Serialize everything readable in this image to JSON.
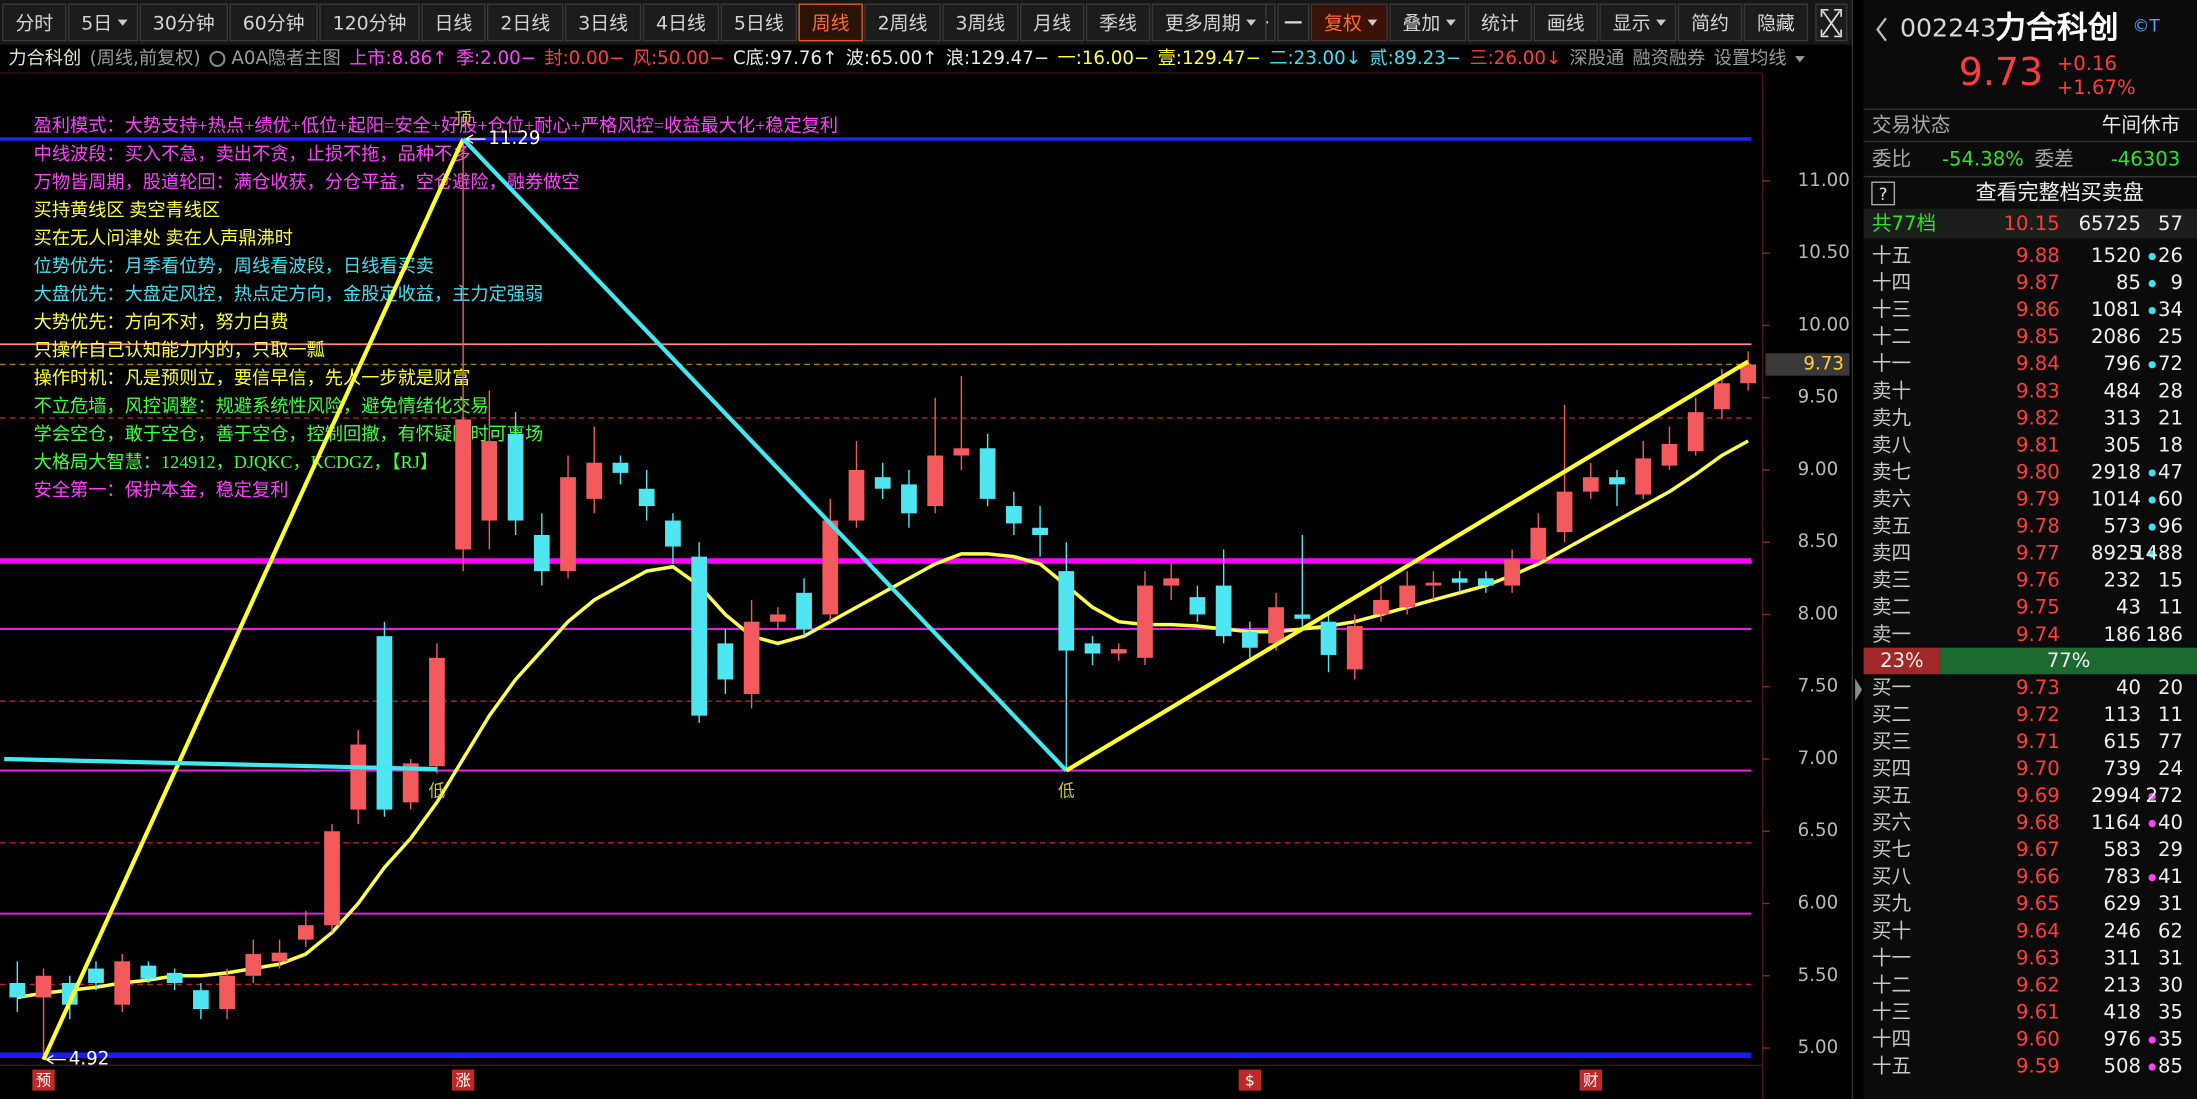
{
  "toolbar": {
    "periods": [
      {
        "text": "分时"
      },
      {
        "text": "5日",
        "dropdown": true
      },
      {
        "text": "30分钟"
      },
      {
        "text": "60分钟"
      },
      {
        "text": "120分钟"
      },
      {
        "text": "日线"
      },
      {
        "text": "2日线"
      },
      {
        "text": "3日线"
      },
      {
        "text": "4日线"
      },
      {
        "text": "5日线"
      },
      {
        "text": "周线"
      },
      {
        "text": "2周线"
      },
      {
        "text": "3周线"
      },
      {
        "text": "月线"
      },
      {
        "text": "季线"
      },
      {
        "text": "更多周期",
        "dropdown": true
      }
    ],
    "active_index": 10,
    "tools": [
      {
        "text": "复权",
        "dropdown": true,
        "highlight": true
      },
      {
        "text": "叠加",
        "dropdown": true
      },
      {
        "text": "统计"
      },
      {
        "text": "画线"
      },
      {
        "text": "显示",
        "dropdown": true
      },
      {
        "text": "简约"
      },
      {
        "text": "隐藏"
      }
    ]
  },
  "indicator_bar": {
    "items": [
      {
        "text": "力合科创",
        "color": "#e8e8c8"
      },
      {
        "text": "(周线,前复权)",
        "color": "#9a9a9a"
      },
      {
        "text": "A0A隐者主图",
        "color": "#9a9a9a"
      },
      {
        "text": "上市:8.86↑",
        "color": "#ff40ff"
      },
      {
        "text": "季:2.00−",
        "color": "#ff40ff"
      },
      {
        "text": "封:0.00−",
        "color": "#ff3c3c"
      },
      {
        "text": "风:50.00−",
        "color": "#ff3c3c"
      },
      {
        "text": "C底:97.76↑",
        "color": "#e8e8e8"
      },
      {
        "text": "波:65.00↑",
        "color": "#e8e8e8"
      },
      {
        "text": "浪:129.47−",
        "color": "#e8e8e8"
      },
      {
        "text": "一:16.00−",
        "color": "#ffff40"
      },
      {
        "text": "壹:129.47−",
        "color": "#ffff40"
      },
      {
        "text": "二:23.00↓",
        "color": "#40e0f0"
      },
      {
        "text": "贰:89.23−",
        "color": "#40e0f0"
      },
      {
        "text": "三:26.00↓",
        "color": "#ff3c3c"
      },
      {
        "text": "深股通",
        "color": "#9a9a9a"
      },
      {
        "text": "融资融券",
        "color": "#9a9a9a"
      },
      {
        "text": "设置均线",
        "color": "#9a9a9a",
        "dropdown": true
      }
    ]
  },
  "notes": [
    {
      "text": "盈利模式：大势支持+热点+绩优+低位+起阳=安全+好股+仓位+耐心+严格风控=收益最大化+稳定复利",
      "color": "#ff40ff"
    },
    {
      "text": "中线波段：买入不急，卖出不贪，止损不拖，品种不多",
      "color": "#ff40ff"
    },
    {
      "text": "万物皆周期，股道轮回：满仓收获，分仓平益，空仓避险，融券做空",
      "color": "#ff40ff"
    },
    {
      "text": "买持黄线区    卖空青线区",
      "color": "#ffff40"
    },
    {
      "text": "买在无人问津处 卖在人声鼎沸时",
      "color": "#ffff40"
    },
    {
      "text": "位势优先：月季看位势，周线看波段，日线看买卖",
      "color": "#40e0f0"
    },
    {
      "text": "大盘优先：大盘定风控，热点定方向，金股定收益，主力定强弱",
      "color": "#40e0f0"
    },
    {
      "text": "大势优先：方向不对，努力白费",
      "color": "#ffff40"
    },
    {
      "text": "只操作自己认知能力内的，只取一瓢",
      "color": "#ffff40"
    },
    {
      "text": "操作时机：凡是预则立，要信早信，先人一步就是财富",
      "color": "#ffff40"
    },
    {
      "text": "不立危墙，风控调整：规避系统性风险，避免情绪化交易",
      "color": "#40ff40"
    },
    {
      "text": "学会空仓，敢于空仓，善于空仓，控制回撤，有怀疑随时可离场",
      "color": "#40ff40"
    },
    {
      "text": "大格局大智慧：124912，DJQKC，KCDGZ，【RJ】",
      "color": "#40ff40"
    },
    {
      "text": "安全第一：保护本金，稳定复利",
      "color": "#ff40ff"
    }
  ],
  "chart_data": {
    "type": "candlestick",
    "up_color": "#f25a5e",
    "down_color": "#4fe6f2",
    "open": [
      5.45,
      5.35,
      5.45,
      5.55,
      5.3,
      5.57,
      5.52,
      5.4,
      5.27,
      5.5,
      5.6,
      5.75,
      5.85,
      6.65,
      7.85,
      6.7,
      6.95,
      8.45,
      8.65,
      9.25,
      8.55,
      8.3,
      8.8,
      9.05,
      8.87,
      8.65,
      8.4,
      7.8,
      7.45,
      7.95,
      8.15,
      8.0,
      8.65,
      8.95,
      8.9,
      8.75,
      9.1,
      9.15,
      8.75,
      8.6,
      8.3,
      7.8,
      7.73,
      7.7,
      8.2,
      8.12,
      8.2,
      7.88,
      7.8,
      8.0,
      7.95,
      7.62,
      8.0,
      8.05,
      8.2,
      8.25,
      8.25,
      8.2,
      8.38,
      8.57,
      8.85,
      8.95,
      8.83,
      9.03,
      9.13,
      9.42,
      9.6
    ],
    "high": [
      5.6,
      5.55,
      5.5,
      5.6,
      5.65,
      5.6,
      5.55,
      5.45,
      5.55,
      5.75,
      5.75,
      5.95,
      6.55,
      7.2,
      7.95,
      7.0,
      7.8,
      11.29,
      9.55,
      9.4,
      8.7,
      9.1,
      9.3,
      9.1,
      9.0,
      8.7,
      8.5,
      7.9,
      8.1,
      8.05,
      8.25,
      8.8,
      9.2,
      9.05,
      9.0,
      9.5,
      9.65,
      9.25,
      8.85,
      8.75,
      8.5,
      7.85,
      7.8,
      8.3,
      8.35,
      8.2,
      8.45,
      7.95,
      8.15,
      8.55,
      8.0,
      8.0,
      8.2,
      8.3,
      8.3,
      8.3,
      8.3,
      8.45,
      8.7,
      9.45,
      9.05,
      9.0,
      9.2,
      9.3,
      9.5,
      9.7,
      9.82
    ],
    "low": [
      5.25,
      4.92,
      5.2,
      5.4,
      5.25,
      5.45,
      5.4,
      5.2,
      5.2,
      5.45,
      5.55,
      5.7,
      5.8,
      6.55,
      6.6,
      6.65,
      6.9,
      8.3,
      8.45,
      8.55,
      8.2,
      8.25,
      8.7,
      8.9,
      8.65,
      8.35,
      7.25,
      7.45,
      7.35,
      7.9,
      7.85,
      7.95,
      8.6,
      8.8,
      8.6,
      8.7,
      9.0,
      8.75,
      8.55,
      8.4,
      6.92,
      7.65,
      7.68,
      7.65,
      8.1,
      7.95,
      7.8,
      7.7,
      7.75,
      7.9,
      7.6,
      7.55,
      7.95,
      8.0,
      8.1,
      8.15,
      8.15,
      8.15,
      8.35,
      8.5,
      8.8,
      8.75,
      8.8,
      9.0,
      9.1,
      9.35,
      9.55
    ],
    "close": [
      5.35,
      5.5,
      5.3,
      5.45,
      5.6,
      5.48,
      5.45,
      5.27,
      5.5,
      5.65,
      5.66,
      5.85,
      6.5,
      7.1,
      6.65,
      6.97,
      7.7,
      9.35,
      9.2,
      8.65,
      8.3,
      8.95,
      9.05,
      8.98,
      8.75,
      8.47,
      7.3,
      7.55,
      7.95,
      8.0,
      7.9,
      8.65,
      9.0,
      8.87,
      8.7,
      9.1,
      9.15,
      8.8,
      8.63,
      8.55,
      7.75,
      7.73,
      7.76,
      8.2,
      8.25,
      8.0,
      7.85,
      7.77,
      8.05,
      7.97,
      7.72,
      7.92,
      8.1,
      8.2,
      8.22,
      8.22,
      8.2,
      8.38,
      8.6,
      8.85,
      8.95,
      8.9,
      9.08,
      9.18,
      9.4,
      9.6,
      9.73
    ],
    "ma_line": {
      "color": "#ffff50",
      "values": [
        5.35,
        5.38,
        5.4,
        5.42,
        5.45,
        5.47,
        5.5,
        5.5,
        5.52,
        5.55,
        5.58,
        5.65,
        5.8,
        6.0,
        6.25,
        6.45,
        6.7,
        7.0,
        7.3,
        7.55,
        7.75,
        7.95,
        8.1,
        8.2,
        8.3,
        8.33,
        8.2,
        8.0,
        7.85,
        7.8,
        7.85,
        7.95,
        8.05,
        8.15,
        8.25,
        8.35,
        8.42,
        8.42,
        8.4,
        8.35,
        8.2,
        8.05,
        7.95,
        7.93,
        7.93,
        7.92,
        7.9,
        7.88,
        7.88,
        7.9,
        7.92,
        7.95,
        8.0,
        8.05,
        8.1,
        8.15,
        8.2,
        8.27,
        8.35,
        8.45,
        8.55,
        8.65,
        8.75,
        8.85,
        8.97,
        9.1,
        9.2
      ]
    },
    "ylim": [
      4.88,
      11.67
    ],
    "yticks": [
      {
        "value": 5,
        "label": "5.00"
      },
      {
        "value": 5.5,
        "label": "5.50"
      },
      {
        "value": 6,
        "label": "6.00"
      },
      {
        "value": 6.5,
        "label": "6.50"
      },
      {
        "value": 7,
        "label": "7.00"
      },
      {
        "value": 7.5,
        "label": "7.50"
      },
      {
        "value": 8,
        "label": "8.00"
      },
      {
        "value": 8.5,
        "label": "8.50"
      },
      {
        "value": 9,
        "label": "9.00"
      },
      {
        "value": 9.5,
        "label": "9.50"
      },
      {
        "value": 10,
        "label": "10.00"
      },
      {
        "value": 10.5,
        "label": "10.50"
      },
      {
        "value": 11,
        "label": "11.00"
      }
    ],
    "last_price": 9.73,
    "levels": [
      {
        "value": 11.29,
        "color": "#2020ff",
        "width": 2.5
      },
      {
        "value": 9.87,
        "color": "#ff8a8a",
        "width": 1.2
      },
      {
        "value": 9.73,
        "color": "#a08800",
        "width": 1,
        "dash": true
      },
      {
        "value": 9.36,
        "color": "#c02020",
        "width": 1,
        "dash": true
      },
      {
        "value": 8.37,
        "color": "#ff00ff",
        "width": 4
      },
      {
        "value": 7.9,
        "color": "#e020e0",
        "width": 1.5
      },
      {
        "value": 7.4,
        "color": "#c02020",
        "width": 1,
        "dash": true
      },
      {
        "value": 6.92,
        "color": "#e020e0",
        "width": 1.5
      },
      {
        "value": 6.42,
        "color": "#c02020",
        "width": 1,
        "dash": true
      },
      {
        "value": 5.93,
        "color": "#e020e0",
        "width": 1.5
      },
      {
        "value": 5.44,
        "color": "#c02020",
        "width": 1,
        "dash": true
      },
      {
        "value": 4.95,
        "color": "#1a1aff",
        "width": 4
      }
    ],
    "trend_lines": [
      {
        "color": "#ffff30",
        "points": [
          [
            1,
            4.92
          ],
          [
            17,
            11.29
          ]
        ]
      },
      {
        "color": "#40e8f0",
        "points": [
          [
            17,
            11.29
          ],
          [
            40,
            6.92
          ]
        ]
      },
      {
        "color": "#ffff30",
        "points": [
          [
            40,
            6.92
          ],
          [
            66,
            9.75
          ]
        ]
      },
      {
        "color": "#40e8f0",
        "points": [
          [
            -0.5,
            7.0
          ],
          [
            16,
            6.93
          ]
        ]
      }
    ],
    "annotations": [
      {
        "label": "11.29",
        "index": 17,
        "value": 11.29,
        "color": "#ffffff",
        "arrow": true
      },
      {
        "label": "4.92",
        "index": 1,
        "value": 4.92,
        "color": "#ffffff",
        "arrow": true
      },
      {
        "label": "顶",
        "index": 17,
        "value": 11.29,
        "color": "#c8c840",
        "above": true
      },
      {
        "label": "低",
        "index": 40,
        "value": 6.92,
        "color": "#c8c840"
      },
      {
        "label": "低",
        "index": 16,
        "value": 6.92,
        "color": "#c8c840"
      }
    ],
    "markers": [
      {
        "text": "预",
        "index": 1
      },
      {
        "text": "涨",
        "index": 17
      },
      {
        "text": "$",
        "index": 47
      },
      {
        "text": "财",
        "index": 60
      }
    ]
  },
  "quote": {
    "code": "002243",
    "name": "力合科创",
    "tag": "©T",
    "price": "9.73",
    "change": "+0.16",
    "change_pct": "+1.67%",
    "status_label": "交易状态",
    "status": "午间休市",
    "ratio_label": "委比",
    "ratio": "-54.38%",
    "diff_label": "委差",
    "diff": "-46303",
    "full_book_help": "?",
    "full_book": "查看完整档买卖盘"
  },
  "order_book": {
    "sell_total": {
      "label": "共77档",
      "price": "10.15",
      "volume": "65725",
      "count": "57"
    },
    "sells": [
      {
        "label": "十五",
        "price": "9.88",
        "volume": "1520",
        "count": "26",
        "dot": "#40e0f0"
      },
      {
        "label": "十四",
        "price": "9.87",
        "volume": "85",
        "count": "9",
        "dot": "#40e0f0"
      },
      {
        "label": "十三",
        "price": "9.86",
        "volume": "1081",
        "count": "34",
        "dot": "#40e0f0"
      },
      {
        "label": "十二",
        "price": "9.85",
        "volume": "2086",
        "count": "25"
      },
      {
        "label": "十一",
        "price": "9.84",
        "volume": "796",
        "count": "72",
        "dot": "#40e0f0"
      },
      {
        "label": "卖十",
        "price": "9.83",
        "volume": "484",
        "count": "28"
      },
      {
        "label": "卖九",
        "price": "9.82",
        "volume": "313",
        "count": "21"
      },
      {
        "label": "卖八",
        "price": "9.81",
        "volume": "305",
        "count": "18"
      },
      {
        "label": "卖七",
        "price": "9.80",
        "volume": "2918",
        "count": "47",
        "dot": "#40e0f0"
      },
      {
        "label": "卖六",
        "price": "9.79",
        "volume": "1014",
        "count": "60",
        "dot": "#40e0f0"
      },
      {
        "label": "卖五",
        "price": "9.78",
        "volume": "573",
        "count": "96",
        "dot": "#40e0f0"
      },
      {
        "label": "卖四",
        "price": "9.77",
        "volume": "8925",
        "count": "1488",
        "dot": "#40e0f0"
      },
      {
        "label": "卖三",
        "price": "9.76",
        "volume": "232",
        "count": "15"
      },
      {
        "label": "卖二",
        "price": "9.75",
        "volume": "43",
        "count": "11"
      },
      {
        "label": "卖一",
        "price": "9.74",
        "volume": "186",
        "count": "186"
      }
    ],
    "ratio": {
      "values": [
        23,
        77
      ],
      "value_labels": [
        "23%",
        "77%"
      ],
      "colors": [
        "#a02828",
        "#1c6a30"
      ]
    },
    "buys": [
      {
        "label": "买一",
        "price": "9.73",
        "volume": "40",
        "count": "20"
      },
      {
        "label": "买二",
        "price": "9.72",
        "volume": "113",
        "count": "11"
      },
      {
        "label": "买三",
        "price": "9.71",
        "volume": "615",
        "count": "77"
      },
      {
        "label": "买四",
        "price": "9.70",
        "volume": "739",
        "count": "24"
      },
      {
        "label": "买五",
        "price": "9.69",
        "volume": "2994",
        "count": "272",
        "dot": "#ff40ff"
      },
      {
        "label": "买六",
        "price": "9.68",
        "volume": "1164",
        "count": "40",
        "dot": "#ff40ff"
      },
      {
        "label": "买七",
        "price": "9.67",
        "volume": "583",
        "count": "29"
      },
      {
        "label": "买八",
        "price": "9.66",
        "volume": "783",
        "count": "41",
        "dot": "#ff40ff"
      },
      {
        "label": "买九",
        "price": "9.65",
        "volume": "629",
        "count": "31"
      },
      {
        "label": "买十",
        "price": "9.64",
        "volume": "246",
        "count": "62"
      },
      {
        "label": "十一",
        "price": "9.63",
        "volume": "311",
        "count": "31"
      },
      {
        "label": "十二",
        "price": "9.62",
        "volume": "213",
        "count": "30"
      },
      {
        "label": "十三",
        "price": "9.61",
        "volume": "418",
        "count": "35"
      },
      {
        "label": "十四",
        "price": "9.60",
        "volume": "976",
        "count": "35",
        "dot": "#ff40ff"
      },
      {
        "label": "十五",
        "price": "9.59",
        "volume": "508",
        "count": "85",
        "dot": "#ff40ff"
      }
    ]
  }
}
